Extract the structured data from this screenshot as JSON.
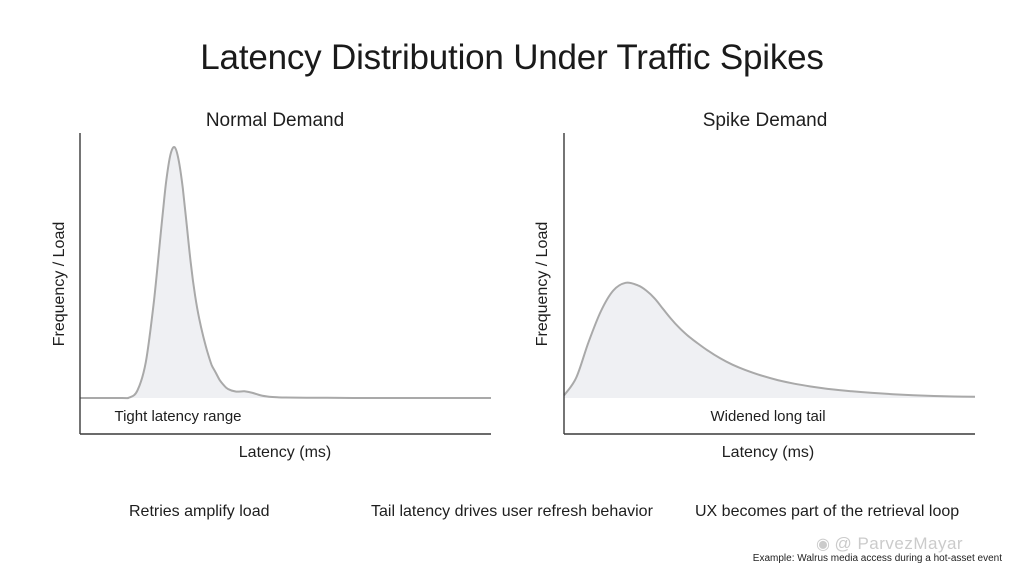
{
  "title": "Latency Distribution Under Traffic Spikes",
  "chart_data": [
    {
      "type": "area",
      "title": "Normal Demand",
      "xlabel": "Latency (ms)",
      "ylabel": "Frequency / Load",
      "xlim": [
        0,
        100
      ],
      "ylim": [
        0,
        100
      ],
      "grid": false,
      "annotation": "Tight latency range",
      "series": [
        {
          "x": [
            0,
            10,
            12,
            14,
            16,
            18,
            20,
            21,
            22,
            23,
            24,
            25,
            26,
            27,
            28,
            29,
            30,
            31,
            32,
            33,
            34,
            35,
            36,
            38,
            40,
            42,
            44,
            46,
            48,
            50,
            55,
            60,
            70,
            80,
            90,
            100
          ],
          "values": [
            0,
            0,
            0.2,
            3,
            14,
            38,
            70,
            85,
            95,
            98,
            93,
            82,
            67,
            52,
            40,
            31,
            24,
            18,
            13,
            10,
            7,
            5,
            3.5,
            2.5,
            2.6,
            2,
            1,
            0.5,
            0.3,
            0.2,
            0.1,
            0.1,
            0,
            0,
            0,
            0
          ]
        }
      ]
    },
    {
      "type": "area",
      "title": "Spike Demand",
      "xlabel": "Latency (ms)",
      "ylabel": "Frequency / Load",
      "xlim": [
        0,
        100
      ],
      "ylim": [
        0,
        100
      ],
      "grid": false,
      "annotation": "Widened long tail",
      "series": [
        {
          "x": [
            0,
            3,
            6,
            9,
            12,
            15,
            18,
            20,
            22,
            24,
            26,
            28,
            30,
            32,
            35,
            38,
            41,
            44,
            48,
            52,
            56,
            60,
            65,
            70,
            75,
            80,
            85,
            90,
            95,
            100
          ],
          "values": [
            1,
            8,
            22,
            34,
            42,
            45,
            44,
            42,
            39,
            35,
            31,
            27.5,
            24.5,
            22,
            18.5,
            15.5,
            13,
            11,
            8.8,
            7,
            5.6,
            4.5,
            3.4,
            2.6,
            2,
            1.5,
            1.1,
            0.8,
            0.6,
            0.5
          ]
        }
      ]
    }
  ],
  "captions": [
    "Retries amplify load",
    "Tail latency drives user refresh behavior",
    "UX becomes part of the retrieval loop"
  ],
  "footnote": "Example: Walrus media access during a hot-asset event",
  "watermark": "@ ParvezMayar",
  "colors": {
    "curve": "#a9a9a9",
    "fill": "#eff0f3",
    "axis": "#3a3a3a"
  }
}
